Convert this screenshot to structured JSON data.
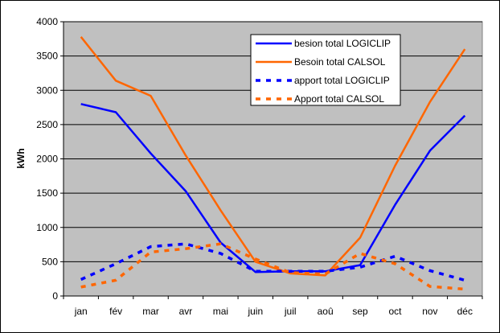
{
  "chart_data": {
    "type": "line",
    "title": "",
    "xlabel": "",
    "ylabel": "kWh",
    "ylim": [
      0,
      4000
    ],
    "yticks": [
      0,
      500,
      1000,
      1500,
      2000,
      2500,
      3000,
      3500,
      4000
    ],
    "grid": true,
    "legend_position": "top-right",
    "plot_background": "#c0c0c0",
    "categories": [
      "jan",
      "fév",
      "mar",
      "avr",
      "mai",
      "juin",
      "juil",
      "aoû",
      "sep",
      "oct",
      "nov",
      "déc"
    ],
    "series": [
      {
        "name": "besion total LOGICLIP",
        "color": "#0000ff",
        "style": "solid",
        "values": [
          2800,
          2680,
          2080,
          1530,
          780,
          350,
          360,
          360,
          450,
          1330,
          2120,
          2630
        ]
      },
      {
        "name": "Besoin total CALSOL",
        "color": "#ff6600",
        "style": "solid",
        "values": [
          3780,
          3140,
          2920,
          2050,
          1250,
          500,
          330,
          300,
          850,
          1900,
          2830,
          3600
        ]
      },
      {
        "name": "apport total LOGICLIP",
        "color": "#0000ff",
        "style": "dotted",
        "values": [
          240,
          470,
          720,
          760,
          620,
          360,
          360,
          360,
          420,
          580,
          370,
          230
        ]
      },
      {
        "name": "Apport total CALSOL",
        "color": "#ff6600",
        "style": "dotted",
        "values": [
          130,
          230,
          640,
          690,
          760,
          540,
          340,
          320,
          620,
          470,
          140,
          100
        ]
      }
    ]
  }
}
